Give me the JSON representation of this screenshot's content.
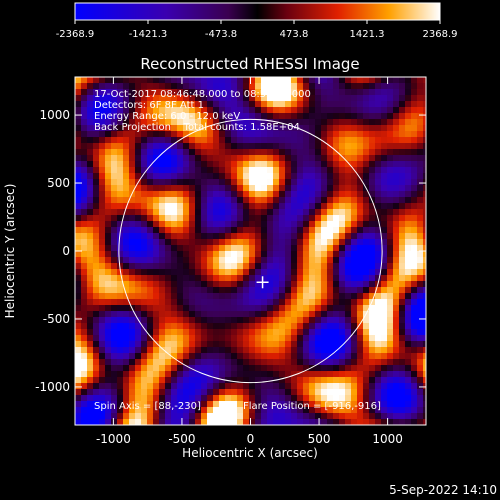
{
  "chart_data": {
    "type": "heatmap",
    "title": "Reconstructed RHESSI Image",
    "xlabel": "Heliocentric X (arcsec)",
    "ylabel": "Heliocentric Y (arcsec)",
    "xlim": [
      -1280,
      1280
    ],
    "ylim": [
      -1280,
      1280
    ],
    "xticks": [
      -1000,
      -500,
      0,
      500,
      1000
    ],
    "yticks": [
      -1000,
      -500,
      0,
      500,
      1000
    ],
    "colorbar": {
      "range": [
        -2368.9,
        2368.9
      ],
      "ticks": [
        "-2368.9",
        "-1421.3",
        "-473.8",
        "473.8",
        "1421.3",
        "2368.9"
      ]
    },
    "annotations": [
      "17-Oct-2017 08:46:48.000 to 08:52:48.000",
      "Detectors: 6F 8F  Att 1",
      "Energy Range: 6.0 - 12.0 keV",
      "Back Projection    Total counts: 1.58E+04",
      "Spin Axis = [88,-230]",
      "Flare Position = [-916,-916]"
    ],
    "solar_disk_radius": 960,
    "spin_axis": [
      88,
      -230
    ]
  },
  "footer": {
    "date": "5-Sep-2022 14:10"
  }
}
